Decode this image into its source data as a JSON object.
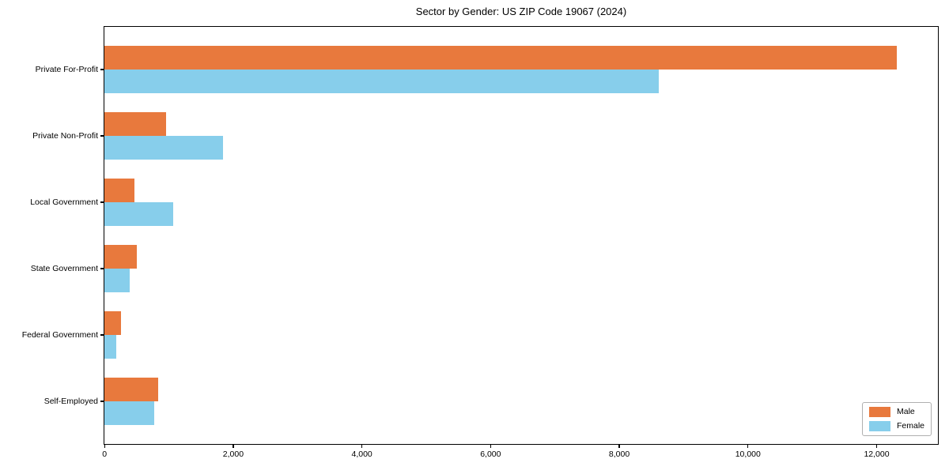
{
  "title": "Sector by Gender: US ZIP Code 19067 (2024)",
  "chart_data": {
    "type": "bar",
    "orientation": "horizontal",
    "title": "Sector by Gender: US ZIP Code 19067 (2024)",
    "categories": [
      "Private For-Profit",
      "Private Non-Profit",
      "Local Government",
      "State Government",
      "Federal Government",
      "Self-Employed"
    ],
    "series": [
      {
        "name": "Male",
        "color": "#e8793d",
        "values": [
          12310,
          960,
          470,
          510,
          260,
          830
        ]
      },
      {
        "name": "Female",
        "color": "#87ceeb",
        "values": [
          8610,
          1840,
          1070,
          390,
          180,
          770
        ]
      }
    ],
    "xlim": [
      0,
      12950
    ],
    "xticks": [
      0,
      2000,
      4000,
      6000,
      8000,
      10000,
      12000
    ],
    "xtick_labels": [
      "0",
      "2,000",
      "4,000",
      "6,000",
      "8,000",
      "10,000",
      "12,000"
    ],
    "grid": "off",
    "legend_position": "lower right"
  }
}
